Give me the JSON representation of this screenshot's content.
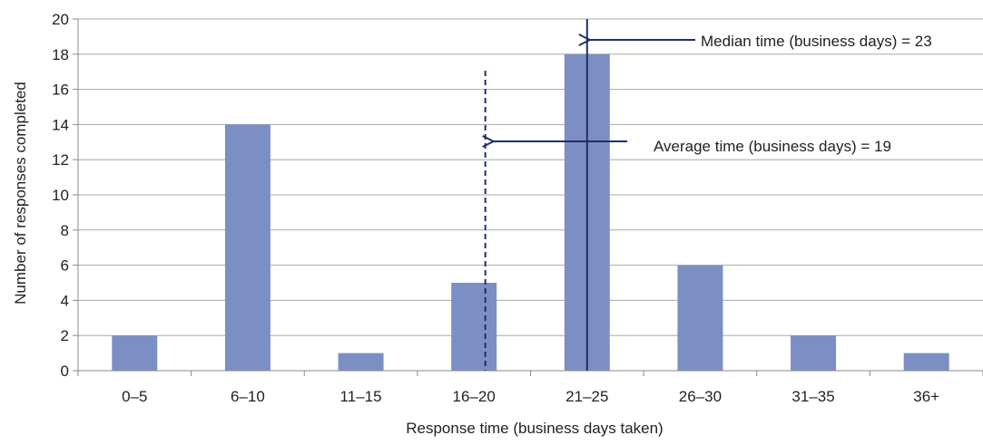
{
  "chart_data": {
    "type": "bar",
    "categories": [
      "0–5",
      "6–10",
      "11–15",
      "16–20",
      "21–25",
      "26–30",
      "31–35",
      "36+"
    ],
    "values": [
      2,
      14,
      1,
      5,
      18,
      6,
      2,
      1
    ],
    "xlabel": "Response time (business days taken)",
    "ylabel": "Number of responses completed",
    "ylim": [
      0,
      20
    ],
    "yticks": [
      0,
      2,
      4,
      6,
      8,
      10,
      12,
      14,
      16,
      18,
      20
    ],
    "grid": true,
    "bar_color": "#7b8fc4",
    "reference_lines": [
      {
        "label": "Median time (business days) = 23",
        "x_value": 23,
        "style": "solid"
      },
      {
        "label": "Average time (business days) = 19",
        "x_value": 19,
        "style": "dashed"
      }
    ],
    "line_color": "#1f2f6b"
  }
}
